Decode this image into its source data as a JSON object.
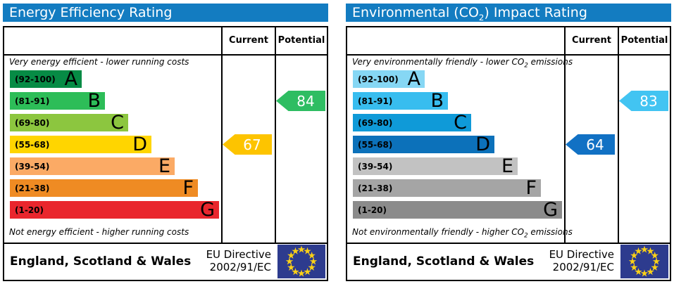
{
  "colors": {
    "header_bg": "#137cc1",
    "header_text": "#ffffff",
    "table_border": "#000000",
    "flag_bg": "#2d3b8e",
    "flag_star": "#fcd116"
  },
  "chart_data": [
    {
      "type": "bar",
      "title": "Energy Efficiency Rating",
      "title_parts": {
        "prefix": "Energy Efficiency Rating",
        "sub": "",
        "suffix": ""
      },
      "columns": {
        "current": "Current",
        "potential": "Potential"
      },
      "caption_top": {
        "prefix": "Very energy efficient - lower running costs",
        "sub": "",
        "suffix": ""
      },
      "caption_bottom": {
        "prefix": "Not energy efficient - higher running costs",
        "sub": "",
        "suffix": ""
      },
      "bands": [
        {
          "letter": "A",
          "range": "(92-100)",
          "color": "#068b45",
          "width_pct": 34
        },
        {
          "letter": "B",
          "range": "(81-91)",
          "color": "#2dbd58",
          "width_pct": 45
        },
        {
          "letter": "C",
          "range": "(69-80)",
          "color": "#8cc63f",
          "width_pct": 56
        },
        {
          "letter": "D",
          "range": "(55-68)",
          "color": "#ffd500",
          "width_pct": 67
        },
        {
          "letter": "E",
          "range": "(39-54)",
          "color": "#fbaa65",
          "width_pct": 78
        },
        {
          "letter": "F",
          "range": "(21-38)",
          "color": "#ef8b23",
          "width_pct": 89
        },
        {
          "letter": "G",
          "range": "(1-20)",
          "color": "#e9262d",
          "width_pct": 99
        }
      ],
      "current": {
        "value": "67",
        "band": "D",
        "band_index": 3,
        "color": "#fdc400"
      },
      "potential": {
        "value": "84",
        "band": "B",
        "band_index": 1,
        "color": "#2ebd62"
      },
      "footer": {
        "region": "England, Scotland & Wales",
        "directive_line1": "EU Directive",
        "directive_line2": "2002/91/EC"
      }
    },
    {
      "type": "bar",
      "title": "Environmental (CO2) Impact Rating",
      "title_parts": {
        "prefix": "Environmental (CO",
        "sub": "2",
        "suffix": ") Impact Rating"
      },
      "columns": {
        "current": "Current",
        "potential": "Potential"
      },
      "caption_top": {
        "prefix": "Very environmentally friendly - lower CO",
        "sub": "2",
        "suffix": " emissions"
      },
      "caption_bottom": {
        "prefix": "Not environmentally friendly - higher CO",
        "sub": "2",
        "suffix": " emissions"
      },
      "bands": [
        {
          "letter": "A",
          "range": "(92-100)",
          "color": "#86d7f4",
          "width_pct": 34
        },
        {
          "letter": "B",
          "range": "(81-91)",
          "color": "#38bdef",
          "width_pct": 45
        },
        {
          "letter": "C",
          "range": "(69-80)",
          "color": "#0f9ad8",
          "width_pct": 56
        },
        {
          "letter": "D",
          "range": "(55-68)",
          "color": "#0c71ba",
          "width_pct": 67
        },
        {
          "letter": "E",
          "range": "(39-54)",
          "color": "#c2c2c2",
          "width_pct": 78
        },
        {
          "letter": "F",
          "range": "(21-38)",
          "color": "#a5a5a5",
          "width_pct": 89
        },
        {
          "letter": "G",
          "range": "(1-20)",
          "color": "#8b8b8b",
          "width_pct": 99
        }
      ],
      "current": {
        "value": "64",
        "band": "D",
        "band_index": 3,
        "color": "#1171c4"
      },
      "potential": {
        "value": "83",
        "band": "B",
        "band_index": 1,
        "color": "#42c4f2"
      },
      "footer": {
        "region": "England, Scotland & Wales",
        "directive_line1": "EU Directive",
        "directive_line2": "2002/91/EC"
      }
    }
  ]
}
